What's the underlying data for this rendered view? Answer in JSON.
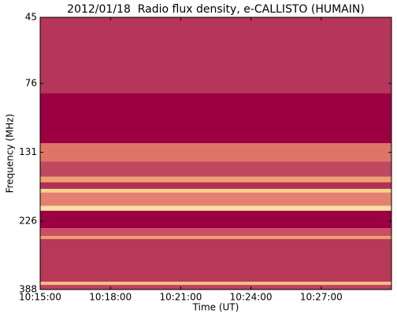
{
  "chart_data": {
    "type": "spectrogram",
    "title": "2012/01/18  Radio flux density, e-CALLISTO (HUMAIN)",
    "x_label": "Time (UT)",
    "y_label": "Frequency (MHz)",
    "xlim": [
      "10:15:00",
      "10:30:00"
    ],
    "xticks": [
      "10:15:00",
      "10:18:00",
      "10:21:00",
      "10:24:00",
      "10:27:00"
    ],
    "ylim": [
      45,
      388
    ],
    "yticks": [
      45,
      76,
      131,
      226,
      388
    ],
    "y_scale": "log",
    "y_inverted": true,
    "bands": [
      {
        "from": 45,
        "to": 82,
        "color": "#b6365a"
      },
      {
        "from": 82,
        "to": 122,
        "color": "#9c0042"
      },
      {
        "from": 122,
        "to": 141,
        "color": "#de7466"
      },
      {
        "from": 141,
        "to": 159,
        "color": "#c04860"
      },
      {
        "from": 159,
        "to": 166,
        "color": "#eea070"
      },
      {
        "from": 166,
        "to": 175,
        "color": "#b03252"
      },
      {
        "from": 175,
        "to": 180,
        "color": "#f6d08e"
      },
      {
        "from": 180,
        "to": 200,
        "color": "#e48070"
      },
      {
        "from": 200,
        "to": 208,
        "color": "#f6dea0"
      },
      {
        "from": 208,
        "to": 239,
        "color": "#9c0042"
      },
      {
        "from": 239,
        "to": 254,
        "color": "#c85062"
      },
      {
        "from": 254,
        "to": 260,
        "color": "#eea070"
      },
      {
        "from": 260,
        "to": 365,
        "color": "#b83858"
      },
      {
        "from": 365,
        "to": 374,
        "color": "#f6c080"
      },
      {
        "from": 374,
        "to": 388,
        "color": "#c04060"
      }
    ]
  }
}
